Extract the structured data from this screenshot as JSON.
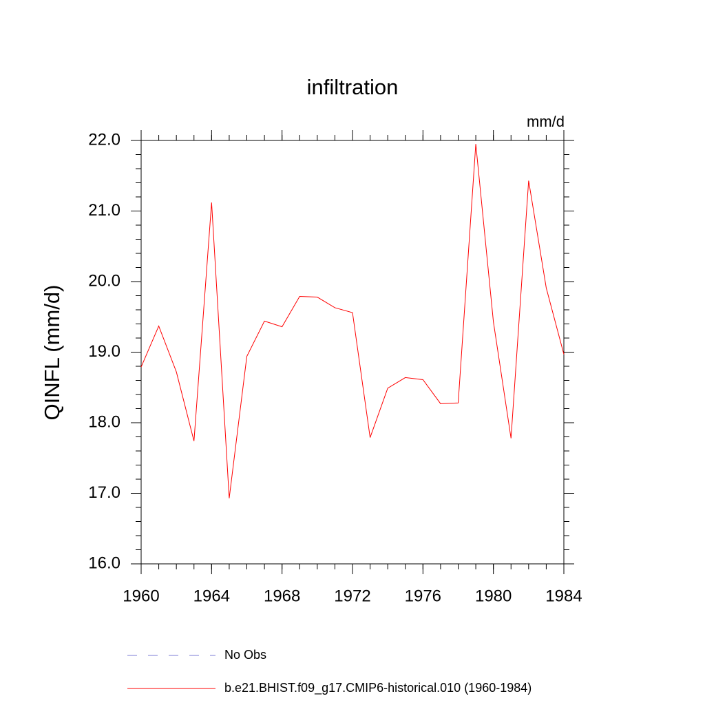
{
  "chart_data": {
    "type": "line",
    "title": "infiltration",
    "units_label": "mm/d",
    "y_label": "QINFL  (mm/d)",
    "x": [
      1960,
      1961,
      1962,
      1963,
      1964,
      1965,
      1966,
      1967,
      1968,
      1969,
      1970,
      1971,
      1972,
      1973,
      1974,
      1975,
      1976,
      1977,
      1978,
      1979,
      1980,
      1981,
      1982,
      1983,
      1984
    ],
    "series": [
      {
        "name": "b.e21.BHIST.f09_g17.CMIP6-historical.010 (1960-1984)",
        "color": "#ff0000",
        "values": [
          18.79,
          19.37,
          18.72,
          17.74,
          21.12,
          16.93,
          18.94,
          19.44,
          19.36,
          19.79,
          19.78,
          19.63,
          19.56,
          17.79,
          18.49,
          18.64,
          18.61,
          18.27,
          18.28,
          21.95,
          19.43,
          17.78,
          21.43,
          19.91,
          18.97
        ]
      }
    ],
    "legend": [
      {
        "name": "No Obs",
        "color": "#7b7bd6",
        "dashed": true
      },
      {
        "name": "b.e21.BHIST.f09_g17.CMIP6-historical.010 (1960-1984)",
        "color": "#ff0000",
        "dashed": false
      }
    ],
    "xlim": [
      1960,
      1984
    ],
    "xticks": [
      1960,
      1964,
      1968,
      1972,
      1976,
      1980,
      1984
    ],
    "x_minor_step": 1,
    "ylim": [
      16,
      22
    ],
    "yticks": [
      {
        "value": 16,
        "label": "16.0"
      },
      {
        "value": 17,
        "label": "17.0"
      },
      {
        "value": 18,
        "label": "18.0"
      },
      {
        "value": 19,
        "label": "19.0"
      },
      {
        "value": 20,
        "label": "20.0"
      },
      {
        "value": 21,
        "label": "21.0"
      },
      {
        "value": 22,
        "label": "22.0"
      }
    ],
    "y_minor_step": 0.2
  }
}
